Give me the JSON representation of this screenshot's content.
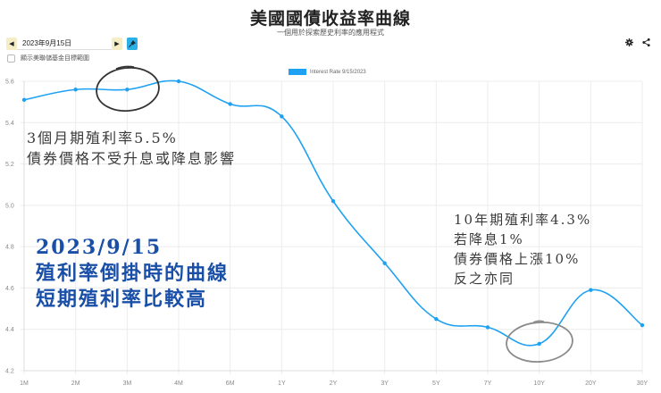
{
  "header": {
    "title": "美國國債收益率曲線",
    "subtitle": "一個用於探索歷史利率的應用程式"
  },
  "controls": {
    "prev_icon": "caret-left-icon",
    "next_icon": "caret-right-icon",
    "date_value": "2023年9月15日",
    "pin_icon": "pin-icon",
    "fed_checkbox_label": "顯示美聯儲基金目標範圍",
    "fed_checkbox_checked": false,
    "settings_icon": "gear-icon",
    "share_icon": "share-icon",
    "accent_color": "#2ab0e4",
    "nav_color": "#f4edc6"
  },
  "annotations": {
    "gray_top": [
      "3個月期殖利率5.5%",
      "債券價格不受升息或降息影響"
    ],
    "blue_main": [
      "2023/9/15",
      "殖利率倒掛時的曲線",
      "短期殖利率比較高"
    ],
    "right": [
      "10年期殖利率4.3%",
      "若降息1%",
      "債券價格上漲10%",
      "反之亦同"
    ]
  },
  "chart_data": {
    "type": "line",
    "title": "",
    "legend": [
      "Interest Rate 9/15/2023"
    ],
    "legend_position": "top",
    "categories": [
      "1M",
      "2M",
      "3M",
      "4M",
      "6M",
      "1Y",
      "2Y",
      "3Y",
      "5Y",
      "7Y",
      "10Y",
      "20Y",
      "30Y"
    ],
    "series": [
      {
        "name": "Interest Rate 9/15/2023",
        "color": "#1ea1f2",
        "values": [
          5.51,
          5.56,
          5.56,
          5.6,
          5.49,
          5.43,
          5.02,
          4.72,
          4.45,
          4.41,
          4.33,
          4.59,
          4.42
        ]
      }
    ],
    "y_ticks": [
      "5.6",
      "5.4",
      "5.2",
      "5.0",
      "4.8",
      "4.6",
      "4.4",
      "4.2"
    ],
    "ylim": [
      4.2,
      5.6
    ],
    "xlabel": "",
    "ylabel": "",
    "grid": true,
    "circled_points": [
      "3M",
      "10Y"
    ]
  }
}
